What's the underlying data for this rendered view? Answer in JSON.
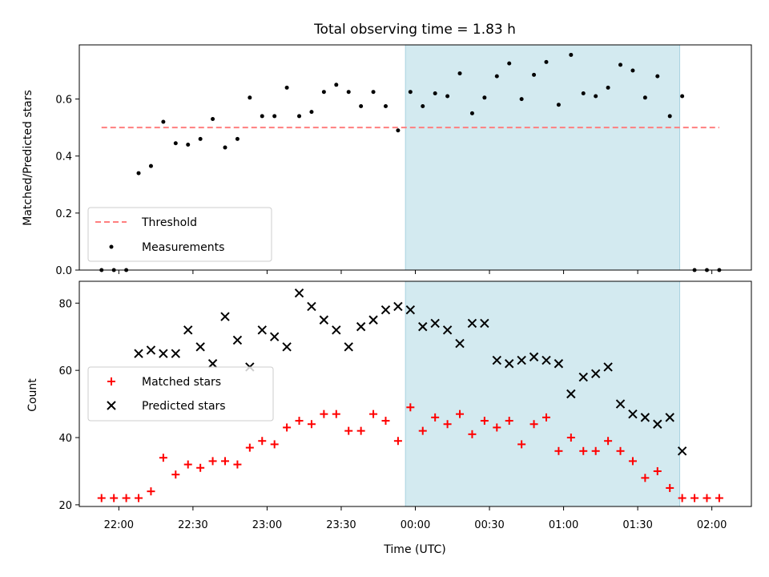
{
  "title": "Total observing time = 1.83 h",
  "colors": {
    "threshold": "#ff7f7f",
    "measurement": "#000000",
    "matched": "#ff0000",
    "predicted": "#000000",
    "highlight": "#d3eaf0",
    "highlight_edge": "#a9d2e0"
  },
  "chart_data": [
    {
      "type": "scatter",
      "ylabel": "Matched/Predicted stars",
      "xlabel": "",
      "xlim": [
        "21:44",
        "02:16"
      ],
      "ylim": [
        0,
        0.79
      ],
      "yticks": [
        0.0,
        0.2,
        0.4,
        0.6
      ],
      "ytick_labels": [
        "0.0",
        "0.2",
        "0.4",
        "0.6"
      ],
      "grid": false,
      "legend_position": "lower-left",
      "highlight_span": [
        "23:56",
        "01:47"
      ],
      "threshold": {
        "name": "Threshold",
        "y": 0.5,
        "x_range": [
          "21:53",
          "02:03"
        ],
        "style": "dashed"
      },
      "series": [
        {
          "name": "Measurements",
          "x": [
            "21:53",
            "21:58",
            "22:03",
            "22:08",
            "22:13",
            "22:18",
            "22:23",
            "22:28",
            "22:33",
            "22:38",
            "22:43",
            "22:48",
            "22:53",
            "22:58",
            "23:03",
            "23:08",
            "23:13",
            "23:18",
            "23:23",
            "23:28",
            "23:33",
            "23:38",
            "23:43",
            "23:48",
            "23:53",
            "23:58",
            "00:03",
            "00:08",
            "00:13",
            "00:18",
            "00:23",
            "00:28",
            "00:33",
            "00:38",
            "00:43",
            "00:48",
            "00:53",
            "00:58",
            "01:03",
            "01:08",
            "01:13",
            "01:18",
            "01:23",
            "01:28",
            "01:33",
            "01:38",
            "01:43",
            "01:48",
            "01:53",
            "01:58",
            "02:03"
          ],
          "y": [
            0.0,
            0.0,
            0.0,
            0.34,
            0.365,
            0.52,
            0.445,
            0.44,
            0.46,
            0.53,
            0.43,
            0.46,
            0.605,
            0.54,
            0.54,
            0.64,
            0.54,
            0.555,
            0.625,
            0.65,
            0.625,
            0.575,
            0.625,
            0.575,
            0.49,
            0.625,
            0.575,
            0.62,
            0.61,
            0.69,
            0.55,
            0.605,
            0.68,
            0.725,
            0.6,
            0.685,
            0.73,
            0.58,
            0.755,
            0.62,
            0.61,
            0.64,
            0.72,
            0.7,
            0.605,
            0.68,
            0.54,
            0.61,
            0.0,
            0.0,
            0.0
          ]
        }
      ]
    },
    {
      "type": "scatter",
      "xlabel": "Time (UTC)",
      "ylabel": "Count",
      "xlim": [
        "21:44",
        "02:16"
      ],
      "ylim": [
        19.5,
        86.5
      ],
      "yticks": [
        20,
        40,
        60,
        80
      ],
      "ytick_labels": [
        "20",
        "40",
        "60",
        "80"
      ],
      "xtick_labels": [
        "22:00",
        "22:30",
        "23:00",
        "23:30",
        "00:00",
        "00:30",
        "01:00",
        "01:30",
        "02:00"
      ],
      "grid": false,
      "legend_position": "center-left",
      "highlight_span": [
        "23:56",
        "01:47"
      ],
      "series": [
        {
          "name": "Matched stars",
          "marker": "+",
          "x": [
            "21:53",
            "21:58",
            "22:03",
            "22:08",
            "22:13",
            "22:18",
            "22:23",
            "22:28",
            "22:33",
            "22:38",
            "22:43",
            "22:48",
            "22:53",
            "22:58",
            "23:03",
            "23:08",
            "23:13",
            "23:18",
            "23:23",
            "23:28",
            "23:33",
            "23:38",
            "23:43",
            "23:48",
            "23:53",
            "23:58",
            "00:03",
            "00:08",
            "00:13",
            "00:18",
            "00:23",
            "00:28",
            "00:33",
            "00:38",
            "00:43",
            "00:48",
            "00:53",
            "00:58",
            "01:03",
            "01:08",
            "01:13",
            "01:18",
            "01:23",
            "01:28",
            "01:33",
            "01:38",
            "01:43",
            "01:48",
            "01:53",
            "01:58",
            "02:03"
          ],
          "y": [
            22,
            22,
            22,
            22,
            24,
            34,
            29,
            32,
            31,
            33,
            33,
            32,
            37,
            39,
            38,
            43,
            45,
            44,
            47,
            47,
            42,
            42,
            47,
            45,
            39,
            49,
            42,
            46,
            44,
            47,
            41,
            45,
            43,
            45,
            38,
            44,
            46,
            36,
            40,
            36,
            36,
            39,
            36,
            33,
            28,
            30,
            25,
            22,
            22,
            22,
            22
          ]
        },
        {
          "name": "Predicted stars",
          "marker": "x",
          "x": [
            "22:08",
            "22:13",
            "22:18",
            "22:23",
            "22:28",
            "22:33",
            "22:38",
            "22:43",
            "22:48",
            "22:53",
            "22:58",
            "23:03",
            "23:08",
            "23:13",
            "23:18",
            "23:23",
            "23:28",
            "23:33",
            "23:38",
            "23:43",
            "23:48",
            "23:53",
            "23:58",
            "00:03",
            "00:08",
            "00:13",
            "00:18",
            "00:23",
            "00:28",
            "00:33",
            "00:38",
            "00:43",
            "00:48",
            "00:53",
            "00:58",
            "01:03",
            "01:08",
            "01:13",
            "01:18",
            "01:23",
            "01:28",
            "01:33",
            "01:38",
            "01:43",
            "01:48"
          ],
          "y": [
            65,
            66,
            65,
            65,
            72,
            67,
            62,
            76,
            69,
            61,
            72,
            70,
            67,
            83,
            79,
            75,
            72,
            67,
            73,
            75,
            78,
            79,
            78,
            73,
            74,
            72,
            68,
            74,
            74,
            63,
            62,
            63,
            64,
            63,
            62,
            53,
            58,
            59,
            61,
            50,
            47,
            46,
            44,
            46,
            36
          ]
        }
      ]
    }
  ]
}
